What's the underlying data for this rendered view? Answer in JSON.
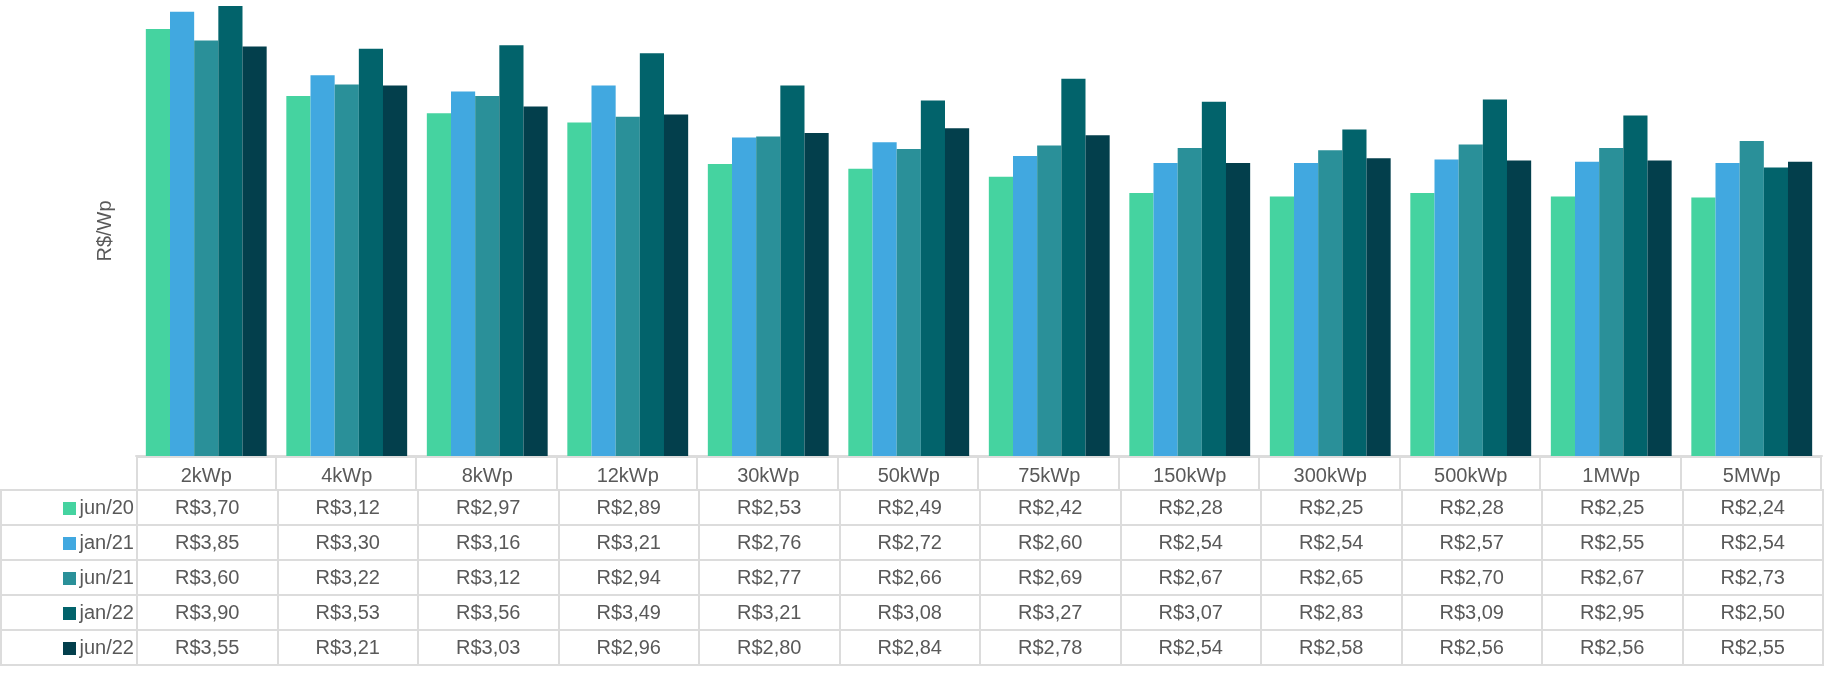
{
  "chart_data": {
    "type": "bar",
    "ylabel": "R$/Wp",
    "ylim": [
      0,
      3.9
    ],
    "legend": "bottom",
    "grid": false,
    "categories": [
      "2kWp",
      "4kWp",
      "8kWp",
      "12kWp",
      "30kWp",
      "50kWp",
      "75kWp",
      "150kWp",
      "300kWp",
      "500kWp",
      "1MWp",
      "5MWp"
    ],
    "series": [
      {
        "name": "jun/20",
        "color": "#45d3a0",
        "values": [
          3.7,
          3.12,
          2.97,
          2.89,
          2.53,
          2.49,
          2.42,
          2.28,
          2.25,
          2.28,
          2.25,
          2.24
        ],
        "value_labels": [
          "R$3,70",
          "R$3,12",
          "R$2,97",
          "R$2,89",
          "R$2,53",
          "R$2,49",
          "R$2,42",
          "R$2,28",
          "R$2,25",
          "R$2,28",
          "R$2,25",
          "R$2,24"
        ]
      },
      {
        "name": "jan/21",
        "color": "#41a8e0",
        "values": [
          3.85,
          3.3,
          3.16,
          3.21,
          2.76,
          2.72,
          2.6,
          2.54,
          2.54,
          2.57,
          2.55,
          2.54
        ],
        "value_labels": [
          "R$3,85",
          "R$3,30",
          "R$3,16",
          "R$3,21",
          "R$2,76",
          "R$2,72",
          "R$2,60",
          "R$2,54",
          "R$2,54",
          "R$2,57",
          "R$2,55",
          "R$2,54"
        ]
      },
      {
        "name": "jun/21",
        "color": "#2a9099",
        "values": [
          3.6,
          3.22,
          3.12,
          2.94,
          2.77,
          2.66,
          2.69,
          2.67,
          2.65,
          2.7,
          2.67,
          2.73
        ],
        "value_labels": [
          "R$3,60",
          "R$3,22",
          "R$3,12",
          "R$2,94",
          "R$2,77",
          "R$2,66",
          "R$2,69",
          "R$2,67",
          "R$2,65",
          "R$2,70",
          "R$2,67",
          "R$2,73"
        ]
      },
      {
        "name": "jan/22",
        "color": "#02636b",
        "values": [
          3.9,
          3.53,
          3.56,
          3.49,
          3.21,
          3.08,
          3.27,
          3.07,
          2.83,
          3.09,
          2.95,
          2.5
        ],
        "value_labels": [
          "R$3,90",
          "R$3,53",
          "R$3,56",
          "R$3,49",
          "R$3,21",
          "R$3,08",
          "R$3,27",
          "R$3,07",
          "R$2,83",
          "R$3,09",
          "R$2,95",
          "R$2,50"
        ]
      },
      {
        "name": "jun/22",
        "color": "#033f4c",
        "values": [
          3.55,
          3.21,
          3.03,
          2.96,
          2.8,
          2.84,
          2.78,
          2.54,
          2.58,
          2.56,
          2.56,
          2.55
        ],
        "value_labels": [
          "R$3,55",
          "R$3,21",
          "R$3,03",
          "R$2,96",
          "R$2,80",
          "R$2,84",
          "R$2,78",
          "R$2,54",
          "R$2,58",
          "R$2,56",
          "R$2,56",
          "R$2,55"
        ]
      }
    ]
  }
}
